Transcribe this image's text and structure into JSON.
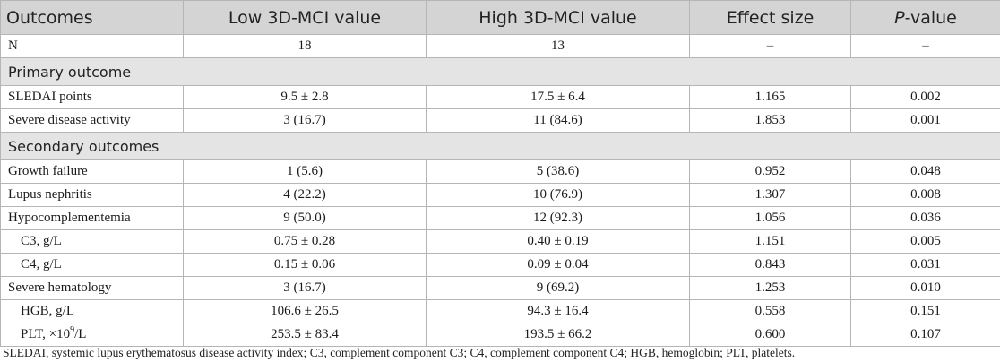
{
  "table": {
    "headers": {
      "outcomes": "Outcomes",
      "low": "Low 3D-MCI value",
      "high": "High 3D-MCI value",
      "effect": "Effect size",
      "p_italic": "P",
      "p_rest": "-value"
    },
    "n_row": {
      "label": "N",
      "low": "18",
      "high": "13",
      "effect": "–",
      "p": "–"
    },
    "primary": {
      "title": "Primary outcome",
      "rows": [
        {
          "label": "SLEDAI points",
          "low": "9.5 ± 2.8",
          "high": "17.5 ± 6.4",
          "effect": "1.165",
          "p": "0.002"
        },
        {
          "label": "Severe disease activity",
          "low": "3 (16.7)",
          "high": "11 (84.6)",
          "effect": "1.853",
          "p": "0.001"
        }
      ]
    },
    "secondary": {
      "title": "Secondary outcomes",
      "rows": [
        {
          "label": "Growth failure",
          "low": "1 (5.6)",
          "high": "5 (38.6)",
          "effect": "0.952",
          "p": "0.048"
        },
        {
          "label": "Lupus nephritis",
          "low": "4 (22.2)",
          "high": "10 (76.9)",
          "effect": "1.307",
          "p": "0.008"
        },
        {
          "label": "Hypocomplementemia",
          "low": "9 (50.0)",
          "high": "12 (92.3)",
          "effect": "1.056",
          "p": "0.036"
        },
        {
          "label": "C3, g/L",
          "low": "0.75 ± 0.28",
          "high": "0.40 ± 0.19",
          "effect": "1.151",
          "p": "0.005"
        },
        {
          "label": "C4, g/L",
          "low": "0.15 ± 0.06",
          "high": "0.09 ± 0.04",
          "effect": "0.843",
          "p": "0.031"
        },
        {
          "label": "Severe hematology",
          "low": "3 (16.7)",
          "high": "9 (69.2)",
          "effect": "1.253",
          "p": "0.010"
        },
        {
          "label": "HGB, g/L",
          "low": "106.6 ± 26.5",
          "high": "94.3 ± 16.4",
          "effect": "0.558",
          "p": "0.151"
        },
        {
          "label_prefix": "PLT, ×10",
          "label_sup": "9",
          "label_suffix": "/L",
          "low": "253.5 ± 83.4",
          "high": "193.5 ± 66.2",
          "effect": "0.600",
          "p": "0.107"
        }
      ]
    }
  },
  "footnote": "SLEDAI, systemic lupus erythematosus disease activity index; C3, complement component C3; C4, complement component C4; HGB, hemoglobin; PLT, platelets."
}
